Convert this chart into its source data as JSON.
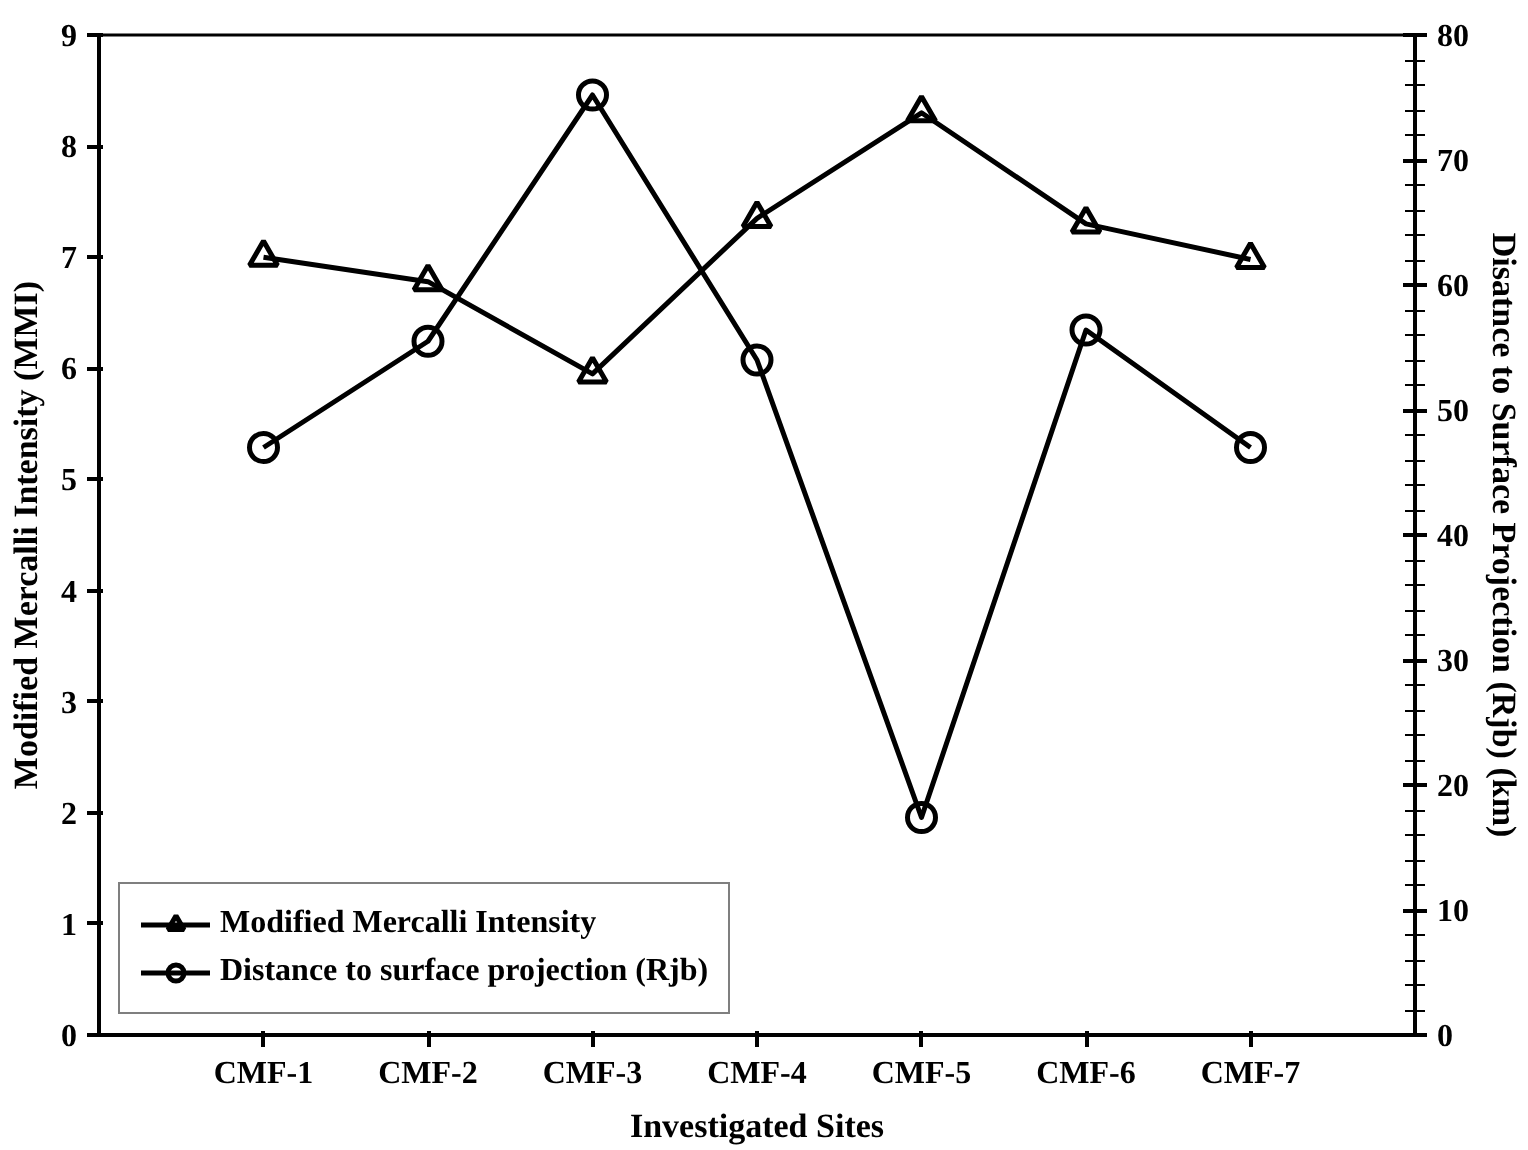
{
  "chart_data": {
    "type": "line",
    "xlabel": "Investigated Sites",
    "ylabel": "Modified Mercalli Intensity (MMI)",
    "y2label": "Disatnce to Surface Projection (Rjb) (km)",
    "categories": [
      "CMF-1",
      "CMF-2",
      "CMF-3",
      "CMF-4",
      "CMF-5",
      "CMF-6",
      "CMF-7"
    ],
    "series": [
      {
        "name": "Modified Mercalli Intensity",
        "color": "#000000",
        "marker": "triangle",
        "values": [
          7.0,
          6.78,
          5.95,
          7.35,
          8.3,
          7.3,
          6.98
        ]
      },
      {
        "name": "Distance to surface projection (Rjb)",
        "color": "#000000",
        "marker": "circle",
        "axis": "y2",
        "values": [
          47,
          55.5,
          75.2,
          54,
          17.4,
          56.4,
          47
        ]
      }
    ],
    "ylim": [
      0,
      9
    ],
    "yticks": [
      0,
      1,
      2,
      3,
      4,
      5,
      6,
      7,
      8,
      9
    ],
    "y2lim": [
      0,
      80
    ],
    "y2ticks": [
      0,
      10,
      20,
      30,
      40,
      50,
      60,
      70,
      80
    ],
    "grid": false,
    "legend": "bottom left",
    "line_style": "solid"
  }
}
